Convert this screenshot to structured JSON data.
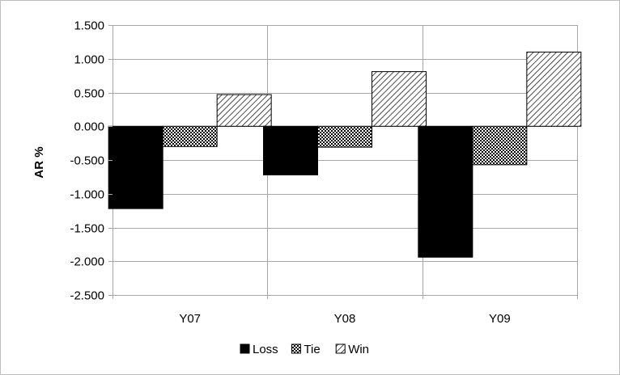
{
  "chart_data": {
    "type": "bar",
    "title": "",
    "xlabel": "",
    "ylabel": "AR %",
    "categories": [
      "Y07",
      "Y08",
      "Y09"
    ],
    "series": [
      {
        "name": "Loss",
        "values": [
          -1.22,
          -0.72,
          -1.94
        ],
        "fill": "solid",
        "color": "#000000"
      },
      {
        "name": "Tie",
        "values": [
          -0.3,
          -0.31,
          -0.57
        ],
        "fill": "dotted",
        "color": "#000000"
      },
      {
        "name": "Win",
        "values": [
          0.47,
          0.81,
          1.1
        ],
        "fill": "hatched",
        "color": "#000000"
      }
    ],
    "ylim": [
      -2.5,
      1.5
    ],
    "yticks": [
      "1.500",
      "1.000",
      "0.500",
      "0.000",
      "-0.500",
      "-1.000",
      "-1.500",
      "-2.000",
      "-2.500"
    ],
    "grid": true,
    "legend_position": "bottom"
  },
  "colors": {
    "grid": "#a6a6a6",
    "border": "#bfbfbf",
    "bar_ink": "#000000"
  }
}
